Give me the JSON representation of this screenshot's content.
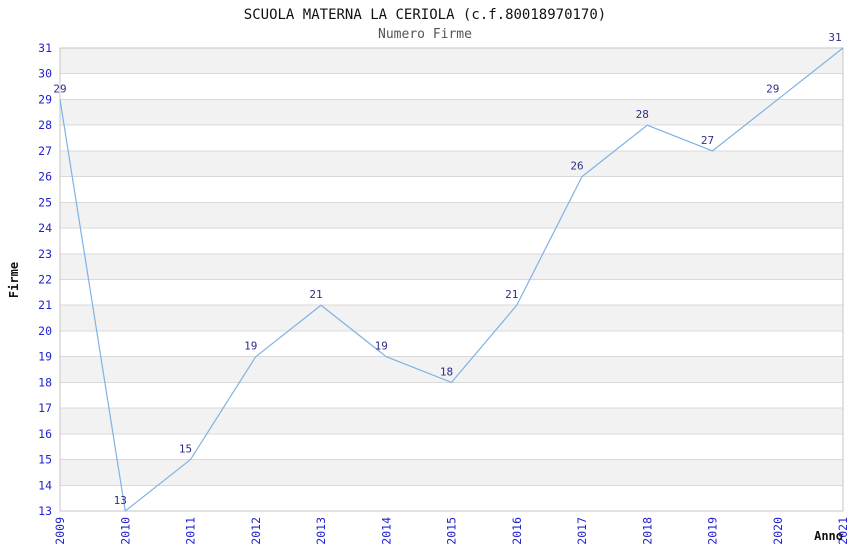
{
  "page": {
    "background": "#ffffff"
  },
  "chart_data": {
    "type": "line",
    "title": "SCUOLA MATERNA LA CERIOLA (c.f.80018970170)",
    "subtitle": "Numero Firme",
    "xlabel": "Anno",
    "ylabel": "Firme",
    "categories": [
      "2009",
      "2010",
      "2011",
      "2012",
      "2013",
      "2014",
      "2015",
      "2016",
      "2017",
      "2018",
      "2019",
      "2020",
      "2021"
    ],
    "values": [
      29,
      13,
      15,
      19,
      21,
      19,
      18,
      21,
      26,
      28,
      27,
      29,
      31
    ],
    "data_labels_shown": true,
    "ylim": [
      13,
      31
    ],
    "y_tick_step": 1,
    "x_tick_rotation_deg": -90,
    "legend": "none",
    "grid": "alternating horizontal stripes with gridline at every integer",
    "markers": "none",
    "colors": {
      "line": "#7fb2e5",
      "tick_label": "#2222d0",
      "data_label": "#2e2e87",
      "stripe": "#f2f2f2",
      "gridline": "#d9d9d9",
      "plot_border": "#c6c6c6",
      "title": "#111111",
      "subtitle": "#555555",
      "axis_label": "#111111",
      "plot_background": "#ffffff"
    }
  }
}
